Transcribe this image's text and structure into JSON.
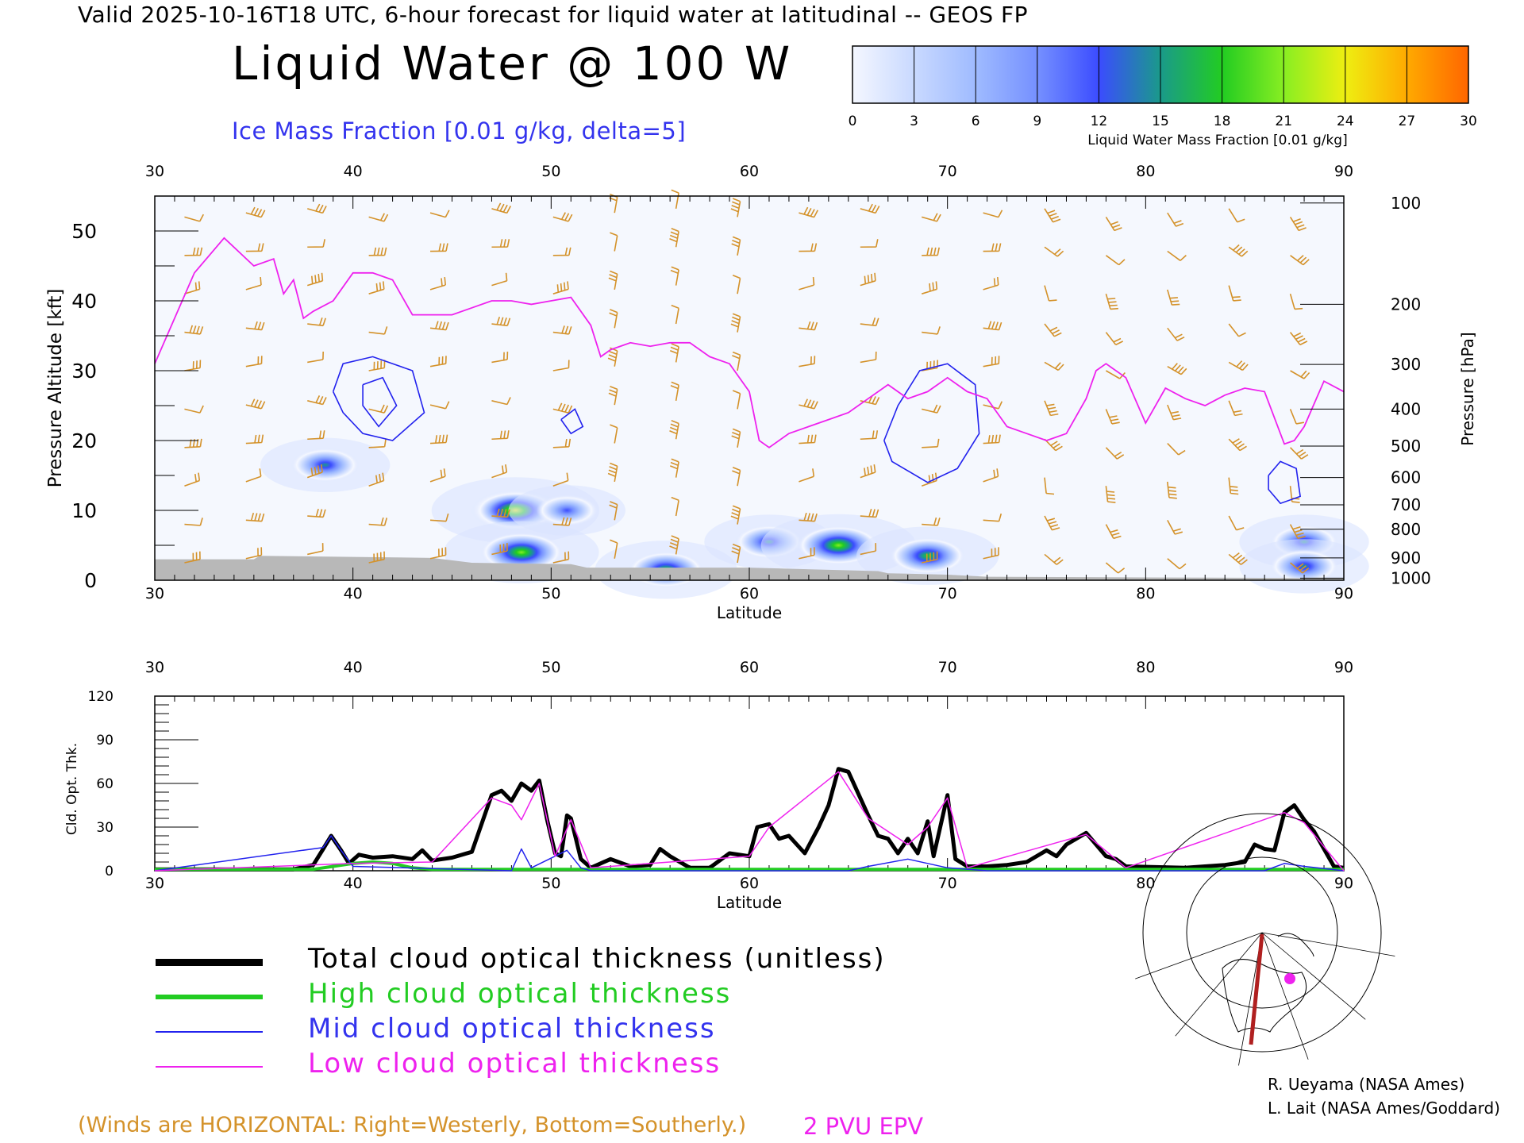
{
  "header": {
    "valid_line": "Valid 2025-10-16T18 UTC, 6-hour forecast for liquid water at latitudinal -- GEOS FP",
    "title": "Liquid Water @ 100 W",
    "subtitle": "Ice Mass Fraction [0.01 g/kg, delta=5]"
  },
  "colorbar": {
    "label": "Liquid Water Mass Fraction [0.01 g/kg]",
    "ticks": [
      "0",
      "3",
      "6",
      "9",
      "12",
      "15",
      "18",
      "21",
      "24",
      "27",
      "30"
    ],
    "colors": [
      "#f4f7ff",
      "#c9d9ff",
      "#9fbbff",
      "#7590ff",
      "#3b4cff",
      "#1a9a8a",
      "#22cc22",
      "#88ee22",
      "#eeee11",
      "#ffaa00",
      "#ff6600"
    ]
  },
  "chart_data": [
    {
      "type": "heatmap",
      "name": "cross-section",
      "x_range": [
        30,
        90
      ],
      "y_range": [
        0,
        55
      ],
      "xlabel": "Latitude",
      "ylabel": "Pressure Altitude [kft]",
      "y2label": "Pressure [hPa]",
      "x_ticks": [
        "30",
        "40",
        "50",
        "60",
        "70",
        "80",
        "90"
      ],
      "y_ticks": [
        "0",
        "10",
        "20",
        "30",
        "40",
        "50"
      ],
      "pressure_ticks": [
        {
          "label": "100",
          "alt": 54
        },
        {
          "label": "200",
          "alt": 39.5
        },
        {
          "label": "300",
          "alt": 30.9
        },
        {
          "label": "400",
          "alt": 24.5
        },
        {
          "label": "500",
          "alt": 19.2
        },
        {
          "label": "600",
          "alt": 14.7
        },
        {
          "label": "700",
          "alt": 10.8
        },
        {
          "label": "800",
          "alt": 7.3
        },
        {
          "label": "900",
          "alt": 3.2
        },
        {
          "label": "1000",
          "alt": 0.3
        }
      ],
      "epv_2pvu": [
        [
          30,
          31
        ],
        [
          32,
          44
        ],
        [
          33.5,
          49
        ],
        [
          35,
          45
        ],
        [
          36,
          46
        ],
        [
          36.5,
          41
        ],
        [
          37,
          43
        ],
        [
          37.5,
          37.5
        ],
        [
          38,
          38.5
        ],
        [
          39,
          40
        ],
        [
          40,
          44
        ],
        [
          41,
          44
        ],
        [
          42,
          43
        ],
        [
          43,
          38
        ],
        [
          44,
          38
        ],
        [
          45,
          38
        ],
        [
          46,
          39
        ],
        [
          47,
          40
        ],
        [
          48,
          40
        ],
        [
          49,
          39.5
        ],
        [
          50,
          40
        ],
        [
          51,
          40.5
        ],
        [
          52,
          36.5
        ],
        [
          52.5,
          32
        ],
        [
          53,
          33
        ],
        [
          54,
          34
        ],
        [
          55,
          33.5
        ],
        [
          56,
          34
        ],
        [
          57,
          34
        ],
        [
          58,
          32
        ],
        [
          59,
          31
        ],
        [
          60,
          27
        ],
        [
          60.5,
          20
        ],
        [
          61,
          19
        ],
        [
          62,
          21
        ],
        [
          63,
          22
        ],
        [
          64,
          23
        ],
        [
          65,
          24
        ],
        [
          66,
          26
        ],
        [
          67,
          28
        ],
        [
          68,
          26
        ],
        [
          69,
          27
        ],
        [
          70,
          29
        ],
        [
          71,
          27
        ],
        [
          72,
          26
        ],
        [
          73,
          22
        ],
        [
          74,
          21
        ],
        [
          75,
          20
        ],
        [
          76,
          21
        ],
        [
          77,
          26
        ],
        [
          77.5,
          30
        ],
        [
          78,
          31
        ],
        [
          79,
          29
        ],
        [
          80,
          22.5
        ],
        [
          81,
          27.5
        ],
        [
          82,
          26
        ],
        [
          83,
          25
        ],
        [
          84,
          26.5
        ],
        [
          85,
          27.5
        ],
        [
          86,
          27
        ],
        [
          87,
          19.5
        ],
        [
          87.5,
          20
        ],
        [
          88,
          22
        ],
        [
          89,
          28.5
        ],
        [
          90,
          27
        ]
      ],
      "liquid_water_blobs": [
        {
          "lat": 38.6,
          "alt": 16.5,
          "value": 15
        },
        {
          "lat": 48.2,
          "alt": 10,
          "value": 24
        },
        {
          "lat": 48.5,
          "alt": 4,
          "value": 21
        },
        {
          "lat": 50.8,
          "alt": 10,
          "value": 12
        },
        {
          "lat": 55.8,
          "alt": 1.5,
          "value": 18
        },
        {
          "lat": 61.0,
          "alt": 5.5,
          "value": 15
        },
        {
          "lat": 64.5,
          "alt": 5,
          "value": 21
        },
        {
          "lat": 69.0,
          "alt": 3.5,
          "value": 18
        },
        {
          "lat": 88.0,
          "alt": 5.5,
          "value": 15
        },
        {
          "lat": 88.0,
          "alt": 2,
          "value": 15
        }
      ],
      "ice_contours": [
        [
          [
            39.0,
            27
          ],
          [
            39.5,
            31
          ],
          [
            41,
            32
          ],
          [
            43,
            30
          ],
          [
            43.6,
            24
          ],
          [
            42,
            20
          ],
          [
            40.5,
            21
          ],
          [
            39.5,
            24
          ],
          [
            39.0,
            27
          ]
        ],
        [
          [
            40.5,
            28
          ],
          [
            41.5,
            29
          ],
          [
            42.2,
            25
          ],
          [
            41.3,
            22
          ],
          [
            40.5,
            25
          ],
          [
            40.5,
            28
          ]
        ],
        [
          [
            66.8,
            20
          ],
          [
            67.5,
            25
          ],
          [
            68.6,
            30
          ],
          [
            70,
            31
          ],
          [
            71.4,
            28
          ],
          [
            71.6,
            21
          ],
          [
            70.5,
            16
          ],
          [
            69,
            14
          ],
          [
            67.2,
            17
          ],
          [
            66.8,
            20
          ]
        ],
        [
          [
            86.2,
            15
          ],
          [
            86.8,
            17
          ],
          [
            87.6,
            16
          ],
          [
            87.8,
            12
          ],
          [
            86.8,
            11
          ],
          [
            86.2,
            13
          ],
          [
            86.2,
            15
          ]
        ],
        [
          [
            50.5,
            23
          ],
          [
            51.2,
            24.5
          ],
          [
            51.6,
            22
          ],
          [
            51,
            21
          ],
          [
            50.5,
            23
          ]
        ]
      ]
    },
    {
      "type": "line",
      "name": "cloud-optical-thickness",
      "x_range": [
        30,
        90
      ],
      "ylim": [
        0,
        120
      ],
      "xlabel": "Latitude",
      "ylabel": "Cld. Opt. Thk.",
      "x_ticks": [
        "30",
        "40",
        "50",
        "60",
        "70",
        "80",
        "90"
      ],
      "y_ticks": [
        "0",
        "30",
        "60",
        "90",
        "120"
      ],
      "series": [
        {
          "name": "Total cloud optical thickness (unitless)",
          "color": "#000000",
          "width": 5,
          "points": [
            [
              30,
              1
            ],
            [
              37,
              1
            ],
            [
              38,
              4
            ],
            [
              38.5,
              15
            ],
            [
              38.9,
              24
            ],
            [
              39.4,
              14
            ],
            [
              39.8,
              5
            ],
            [
              40.3,
              11
            ],
            [
              41,
              9
            ],
            [
              42,
              10
            ],
            [
              43,
              8
            ],
            [
              43.5,
              14
            ],
            [
              44,
              7
            ],
            [
              45,
              9
            ],
            [
              46,
              13
            ],
            [
              47,
              52
            ],
            [
              47.5,
              55
            ],
            [
              48,
              48
            ],
            [
              48.5,
              60
            ],
            [
              49,
              55
            ],
            [
              49.4,
              62
            ],
            [
              49.8,
              35
            ],
            [
              50.2,
              12
            ],
            [
              50.5,
              10
            ],
            [
              50.8,
              38
            ],
            [
              51,
              36
            ],
            [
              51.5,
              8
            ],
            [
              52,
              2
            ],
            [
              53,
              8
            ],
            [
              54,
              3
            ],
            [
              55,
              4
            ],
            [
              55.5,
              15
            ],
            [
              56,
              10
            ],
            [
              57,
              2
            ],
            [
              58,
              2
            ],
            [
              59,
              12
            ],
            [
              60,
              10
            ],
            [
              60.4,
              30
            ],
            [
              61,
              32
            ],
            [
              61.5,
              22
            ],
            [
              62,
              24
            ],
            [
              62.8,
              12
            ],
            [
              63.5,
              30
            ],
            [
              64,
              45
            ],
            [
              64.5,
              70
            ],
            [
              65,
              68
            ],
            [
              66,
              38
            ],
            [
              66.5,
              24
            ],
            [
              67,
              22
            ],
            [
              67.5,
              12
            ],
            [
              68,
              22
            ],
            [
              68.5,
              12
            ],
            [
              69,
              34
            ],
            [
              69.3,
              10
            ],
            [
              70,
              52
            ],
            [
              70.4,
              8
            ],
            [
              71,
              3
            ],
            [
              72,
              3
            ],
            [
              73,
              4
            ],
            [
              74,
              6
            ],
            [
              75,
              14
            ],
            [
              75.5,
              10
            ],
            [
              76,
              18
            ],
            [
              77,
              26
            ],
            [
              78,
              10
            ],
            [
              78.5,
              8
            ],
            [
              79,
              3
            ],
            [
              82,
              2
            ],
            [
              84,
              4
            ],
            [
              85,
              6
            ],
            [
              85.5,
              18
            ],
            [
              86,
              15
            ],
            [
              86.5,
              14
            ],
            [
              87,
              40
            ],
            [
              87.5,
              45
            ],
            [
              88,
              35
            ],
            [
              88.5,
              27
            ],
            [
              89,
              15
            ],
            [
              89.5,
              3
            ],
            [
              90,
              2
            ]
          ]
        },
        {
          "name": "High cloud optical thickness",
          "color": "#22cc22",
          "width": 4,
          "points": [
            [
              30,
              1
            ],
            [
              38,
              1
            ],
            [
              39,
              3
            ],
            [
              40,
              5
            ],
            [
              41,
              6
            ],
            [
              42,
              5
            ],
            [
              43,
              2
            ],
            [
              44,
              1
            ],
            [
              90,
              1
            ]
          ]
        },
        {
          "name": "Mid cloud optical thickness",
          "color": "#2222ee",
          "width": 1.5,
          "points": [
            [
              30,
              0
            ],
            [
              38.5,
              16
            ],
            [
              38.9,
              24
            ],
            [
              39.4,
              14
            ],
            [
              40,
              3
            ],
            [
              48,
              0
            ],
            [
              48.5,
              15
            ],
            [
              49,
              2
            ],
            [
              50.8,
              14
            ],
            [
              51.5,
              2
            ],
            [
              52,
              0
            ],
            [
              65,
              0
            ],
            [
              66,
              3
            ],
            [
              68,
              8
            ],
            [
              69,
              5
            ],
            [
              70,
              2
            ],
            [
              72,
              0
            ],
            [
              86,
              0
            ],
            [
              87,
              5
            ],
            [
              88,
              3
            ],
            [
              90,
              0
            ]
          ]
        },
        {
          "name": "Low cloud optical thickness",
          "color": "#ee22ee",
          "width": 1.5,
          "points": [
            [
              30,
              0
            ],
            [
              40,
              5
            ],
            [
              44,
              6
            ],
            [
              47,
              50
            ],
            [
              48,
              45
            ],
            [
              48.5,
              35
            ],
            [
              49.4,
              60
            ],
            [
              50.2,
              10
            ],
            [
              51,
              35
            ],
            [
              52,
              2
            ],
            [
              60,
              10
            ],
            [
              61,
              30
            ],
            [
              64.5,
              68
            ],
            [
              66,
              36
            ],
            [
              68,
              18
            ],
            [
              69,
              30
            ],
            [
              70,
              50
            ],
            [
              71,
              2
            ],
            [
              77,
              25
            ],
            [
              79,
              2
            ],
            [
              87,
              40
            ],
            [
              88,
              33
            ],
            [
              90,
              0
            ]
          ]
        }
      ]
    }
  ],
  "legend": [
    {
      "label": "Total cloud optical thickness (unitless)",
      "color": "#000000",
      "text_color": "#000000",
      "thickness": 9
    },
    {
      "label": "High cloud optical thickness",
      "color": "#22cc22",
      "text_color": "#22cc22",
      "thickness": 6
    },
    {
      "label": "Mid cloud optical thickness",
      "color": "#2222ee",
      "text_color": "#3333ee",
      "thickness": 2
    },
    {
      "label": "Low cloud optical thickness",
      "color": "#ee22ee",
      "text_color": "#ee22ee",
      "thickness": 2
    }
  ],
  "notes": {
    "winds": "(Winds are HORIZONTAL: Right=Westerly, Bottom=Southerly.)",
    "epv": "2 PVU EPV"
  },
  "credits": {
    "line1": "R. Ueyama (NASA Ames)",
    "line2": "L. Lait (NASA Ames/Goddard)"
  },
  "colors": {
    "wind_barbs": "#d4922a",
    "epv_line": "#ee22ee",
    "ice_contour": "#2222ee",
    "terrain": "#b8b8b8"
  },
  "inset_map": {
    "icon": "polar-map-icon"
  }
}
